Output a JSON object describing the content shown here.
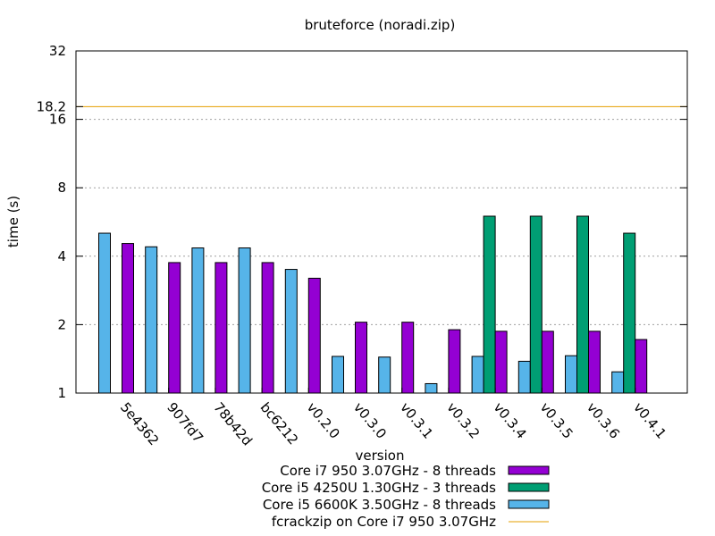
{
  "chart_data": {
    "type": "bar",
    "title": "bruteforce (noradi.zip)",
    "xlabel": "version",
    "ylabel": "time (s)",
    "yscale": "log2",
    "ylim": [
      1,
      32
    ],
    "yticks": [
      {
        "value": 1,
        "label": "1"
      },
      {
        "value": 2,
        "label": "2"
      },
      {
        "value": 4,
        "label": "4"
      },
      {
        "value": 8,
        "label": "8"
      },
      {
        "value": 16,
        "label": "16"
      },
      {
        "value": 18.2,
        "label": "18.2"
      },
      {
        "value": 32,
        "label": "32"
      }
    ],
    "grid": true,
    "legend_position": "bottom",
    "categories": [
      "5e4362",
      "907fd7",
      "78b42d",
      "bc6212",
      "v0.2.0",
      "v0.3.0",
      "v0.3.1",
      "v0.3.2",
      "v0.3.4",
      "v0.3.5",
      "v0.3.6",
      "v0.4.1"
    ],
    "series": [
      {
        "name": "Core i7 950  3.07GHz - 8 threads",
        "color": "#9400d3",
        "values": [
          4.55,
          3.75,
          3.75,
          3.75,
          3.2,
          2.05,
          2.05,
          1.9,
          1.87,
          1.87,
          1.87,
          1.72
        ]
      },
      {
        "name": "Core i5 4250U  1.30GHz - 3 threads",
        "color": "#009e73",
        "values": [
          null,
          null,
          null,
          null,
          null,
          null,
          null,
          null,
          6.0,
          6.0,
          6.0,
          5.05
        ]
      },
      {
        "name": "Core i5 6600K  3.50GHz - 8 threads",
        "color": "#56b4e9",
        "values": [
          5.05,
          4.4,
          4.35,
          4.35,
          3.5,
          1.45,
          1.44,
          1.1,
          1.45,
          1.38,
          1.46,
          1.24
        ]
      }
    ],
    "reference_line": {
      "name": "fcrackzip on Core i7 950  3.07GHz",
      "value": 18.2,
      "color": "#e69f00"
    }
  }
}
